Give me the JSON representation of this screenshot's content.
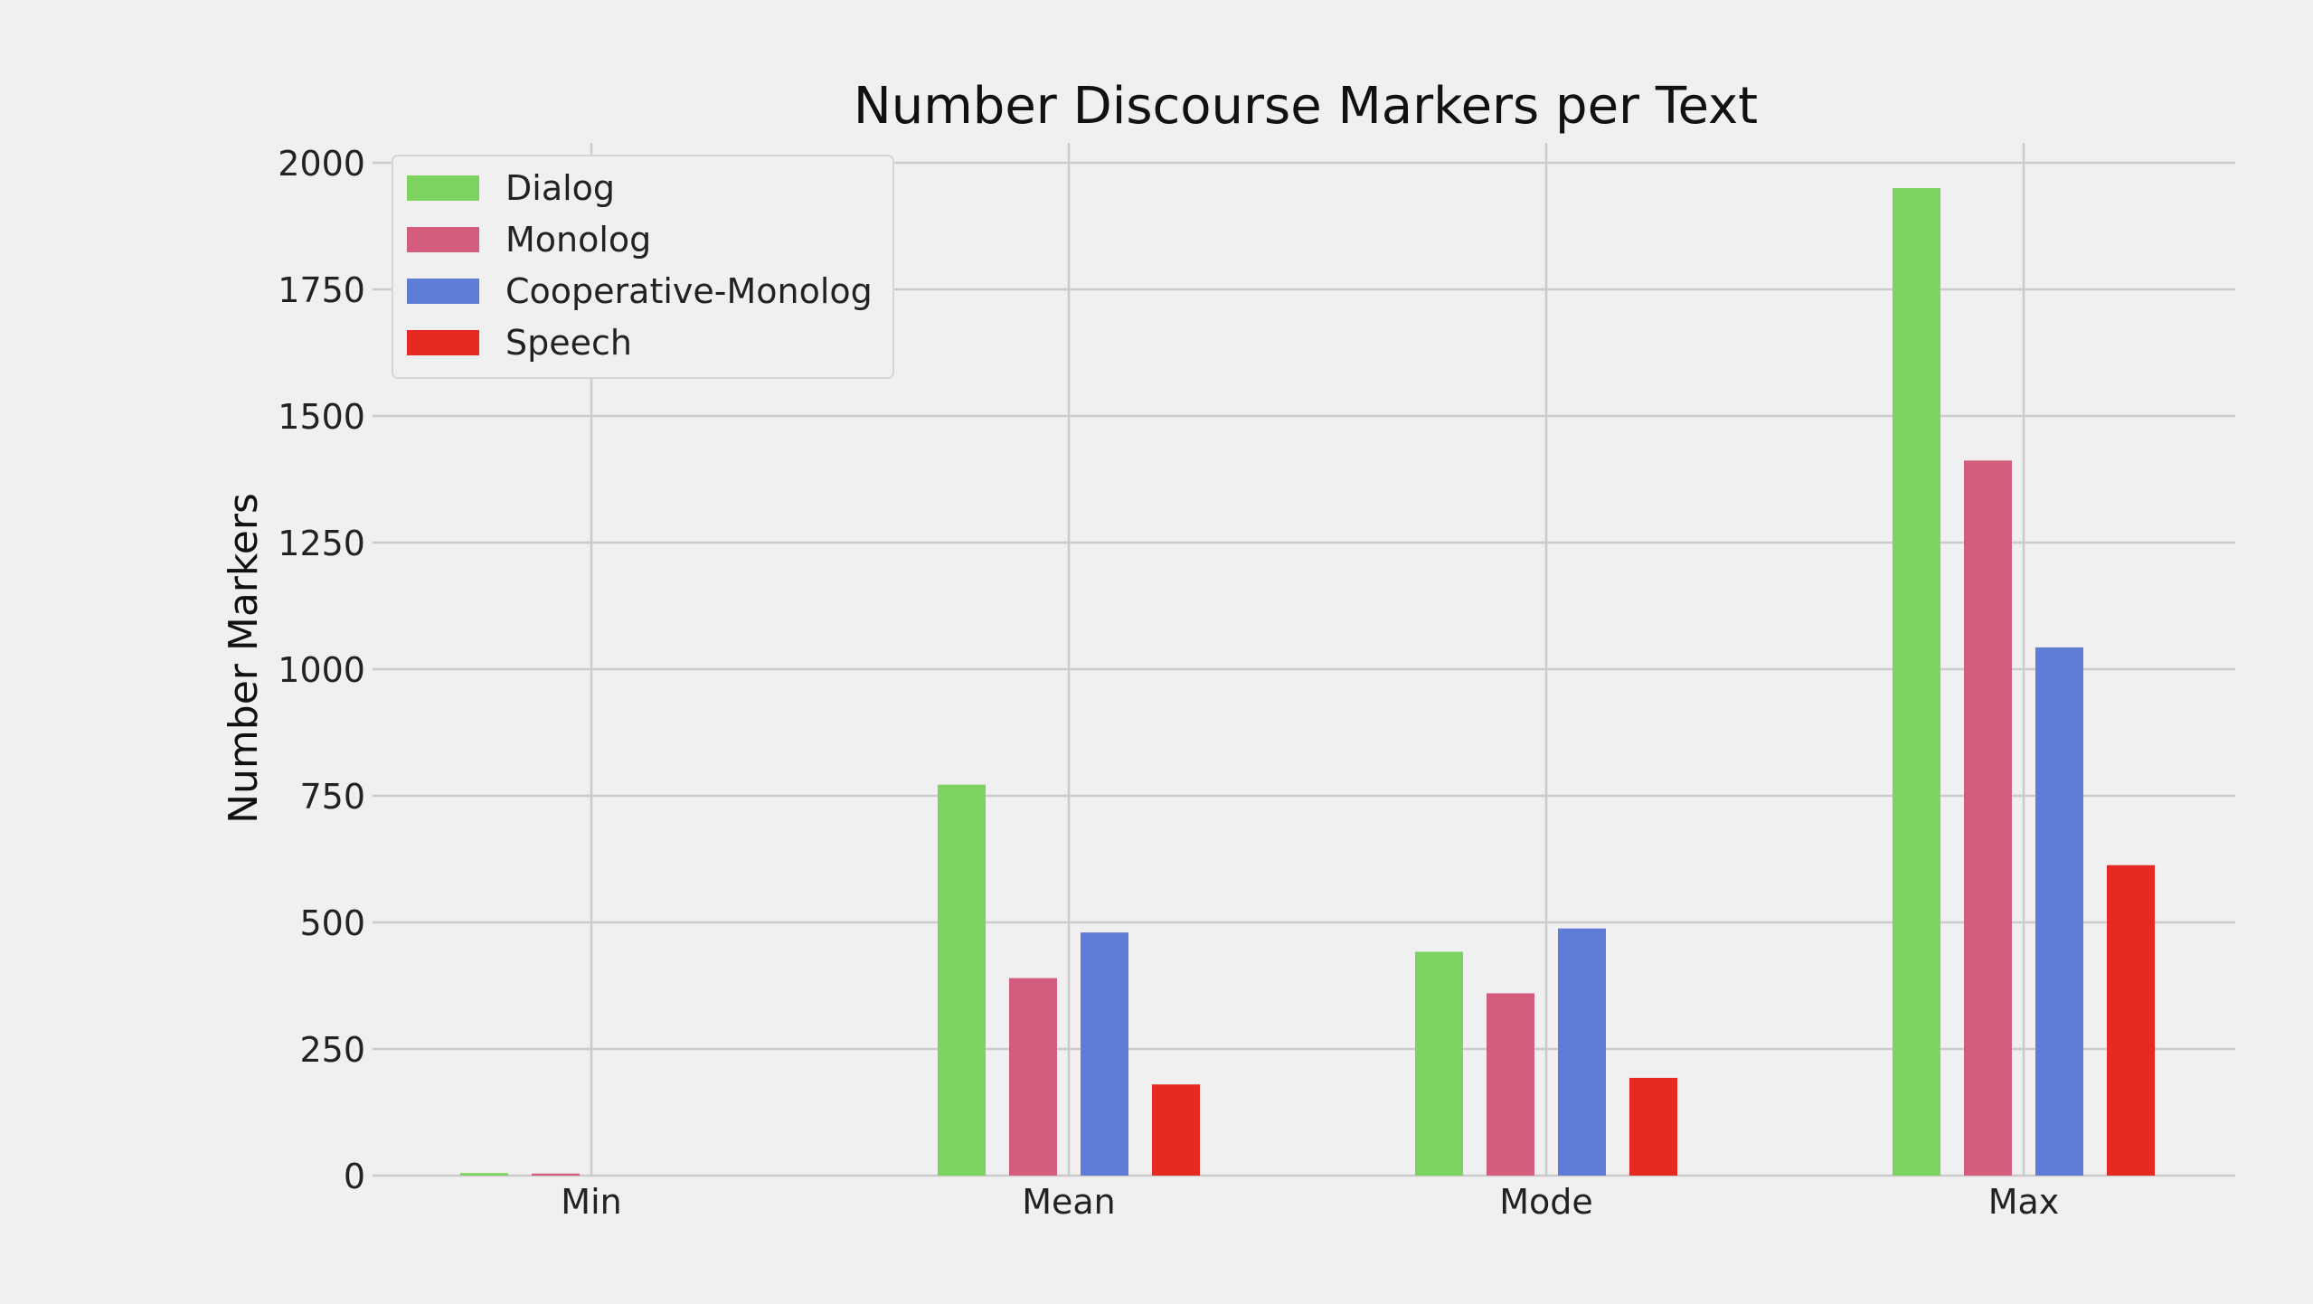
{
  "chart_data": {
    "type": "bar",
    "title": "Number Discourse Markers per Text",
    "xlabel": "",
    "ylabel": "Number Markers",
    "categories": [
      "Min",
      "Mean",
      "Mode",
      "Max"
    ],
    "ylim": [
      0,
      2040
    ],
    "yticks": [
      0,
      250,
      500,
      750,
      1000,
      1250,
      1500,
      1750,
      2000
    ],
    "grid": true,
    "legend_position": "top-left",
    "series": [
      {
        "name": "Dialog",
        "color": "#7dd35f",
        "values": [
          5,
          772,
          442,
          1950
        ]
      },
      {
        "name": "Monolog",
        "color": "#d45d7d",
        "values": [
          4,
          390,
          360,
          1412
        ]
      },
      {
        "name": "Cooperative-Monolog",
        "color": "#5f7cd6",
        "values": [
          0,
          480,
          488,
          1043
        ]
      },
      {
        "name": "Speech",
        "color": "#e42a22",
        "values": [
          0,
          180,
          193,
          613
        ]
      }
    ]
  }
}
